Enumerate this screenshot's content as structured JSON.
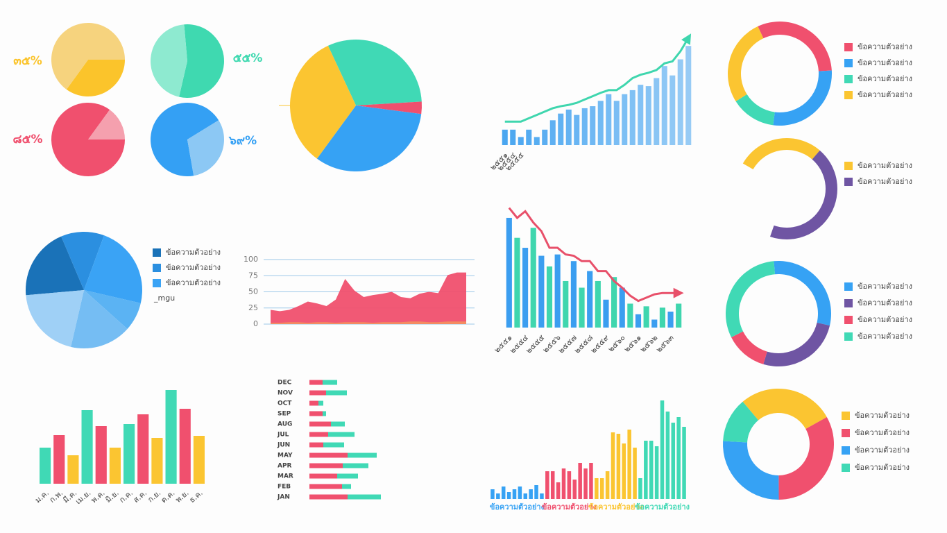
{
  "chart_data": [
    {
      "type": "pie",
      "values": [
        35,
        65
      ],
      "value_labels": [
        "๓๕%",
        null
      ],
      "colors": [
        "#fbc42b",
        "#f6d37e"
      ]
    },
    {
      "type": "pie",
      "values": [
        55,
        45
      ],
      "value_labels": [
        "๕๕%",
        null
      ],
      "colors": [
        "#3fd9b0",
        "#8eead0"
      ]
    },
    {
      "type": "pie",
      "values": [
        85,
        15
      ],
      "value_labels": [
        "๘๕%",
        null
      ],
      "colors": [
        "#f0506e",
        "#f5a0ae"
      ]
    },
    {
      "type": "pie",
      "values": [
        69,
        31
      ],
      "value_labels": [
        "๖๙%",
        null
      ],
      "colors": [
        "#34a0f4",
        "#8cc8f4"
      ]
    },
    {
      "type": "pie",
      "values": [
        31,
        3,
        33,
        33
      ],
      "colors": [
        "#40d9b5",
        "#f0506e",
        "#36a2f4",
        "#fbc531"
      ]
    },
    {
      "type": "combo",
      "categories": [
        "๒๕๕๑",
        "๒๕๕๔",
        "๒๕๕๕",
        null,
        null,
        null,
        null,
        null,
        null,
        null,
        null,
        null,
        null,
        null,
        null,
        null,
        null,
        null,
        null,
        null,
        null,
        null,
        null,
        null
      ],
      "series": [
        {
          "type": "bar",
          "color": "#4aa6f0",
          "values": [
            23,
            23,
            12,
            23,
            12,
            23,
            37,
            47,
            53,
            45,
            55,
            58,
            66,
            76,
            66,
            76,
            82,
            90,
            88,
            100,
            118,
            104,
            128,
            148
          ]
        },
        {
          "type": "line",
          "color": "#3fd6ae",
          "values": [
            35,
            35,
            35,
            40,
            45,
            50,
            55,
            58,
            60,
            63,
            68,
            73,
            78,
            82,
            82,
            90,
            100,
            105,
            108,
            112,
            122,
            125,
            140,
            160
          ]
        }
      ],
      "ylim": [
        0,
        170
      ]
    },
    {
      "type": "donut",
      "categories": [
        "ข้อความตัวอย่าง",
        "ข้อความตัวอย่าง",
        "ข้อความตัวอย่าง",
        "ข้อความตัวอย่าง"
      ],
      "values": [
        31,
        28,
        14,
        27
      ],
      "colors": [
        "#f0506e",
        "#36a2f4",
        "#40d9b5",
        "#fbc531"
      ]
    },
    {
      "type": "donut",
      "categories": [
        "ข้อความตัวอย่าง",
        "ข้อความตัวอย่าง"
      ],
      "values": [
        28,
        44
      ],
      "colors": [
        "#fbc531",
        "#6f55a3"
      ]
    },
    {
      "type": "pie",
      "categories": [
        "ข้อความตัวอย่าง",
        "ข้อความตัวอย่าง",
        "ข้อความตัวอย่าง",
        null,
        null,
        null
      ],
      "values": [
        20,
        12,
        23,
        8,
        17,
        20
      ],
      "colors": [
        "#1a72b8",
        "#2b8fe0",
        "#3aa3f5",
        "#5bb3f3",
        "#75bdf3",
        "#9fd0f6"
      ],
      "annotation": "_mgu"
    },
    {
      "type": "area",
      "series": [
        {
          "color": "#f0506e",
          "values": [
            22,
            20,
            22,
            28,
            35,
            32,
            28,
            38,
            70,
            52,
            42,
            45,
            47,
            50,
            42,
            40,
            47,
            50,
            48,
            76,
            80,
            80
          ]
        },
        {
          "color": "#f5a25a",
          "values": [
            2,
            2,
            3,
            3,
            2,
            3,
            3,
            2,
            3,
            3,
            3,
            2,
            3,
            3,
            3,
            4,
            4,
            3,
            3,
            4,
            4,
            4
          ]
        }
      ],
      "ylim": [
        0,
        100
      ],
      "yticks": [
        0,
        25,
        50,
        75,
        100
      ],
      "grid": true,
      "grid_color": "#9cc8e8"
    },
    {
      "type": "combo",
      "categories": [
        "๒๕๕๑",
        null,
        "๒๕๕๔",
        null,
        "๒๕๕๕",
        null,
        "๒๕๕๖",
        null,
        "๒๕๕๗",
        null,
        "๒๕๕๘",
        null,
        "๒๕๕๙",
        null,
        "๒๕๖๐",
        null,
        "๒๕๖๑",
        null,
        "๒๕๖๒",
        null,
        "๒๕๖๓",
        null
      ],
      "series": [
        {
          "type": "bar",
          "colors": [
            "#3b9ef0",
            "#3fd6ae"
          ],
          "values": [
            165,
            135,
            120,
            150,
            108,
            92,
            110,
            70,
            100,
            60,
            85,
            70,
            42,
            76,
            60,
            36,
            20,
            32,
            12,
            30,
            24,
            36
          ]
        },
        {
          "type": "line",
          "color": "#e8506a",
          "values": [
            180,
            165,
            175,
            158,
            145,
            120,
            120,
            110,
            108,
            100,
            100,
            85,
            85,
            70,
            60,
            48,
            40,
            45,
            50,
            52,
            52,
            52
          ]
        }
      ],
      "ylim": [
        0,
        190
      ]
    },
    {
      "type": "donut",
      "categories": [
        "ข้อความตัวอย่าง",
        "ข้อความตัวอย่าง",
        "ข้อความตัวอย่าง",
        "ข้อความตัวอย่าง"
      ],
      "values": [
        30,
        26,
        13,
        31
      ],
      "colors": [
        "#36a2f4",
        "#6f55a3",
        "#f0506e",
        "#40d9b5"
      ]
    },
    {
      "type": "bar",
      "categories": [
        "ม.ค.",
        "ก.พ.",
        "มี.ค.",
        "เม.ย.",
        "พ.ค.",
        "มิ.ย.",
        "ก.ค.",
        "ส.ค.",
        "ก.ย.",
        "ต.ค.",
        "พ.ย.",
        "ธ.ค."
      ],
      "values": [
        52,
        70,
        41,
        106,
        83,
        52,
        86,
        100,
        66,
        135,
        108,
        69
      ],
      "colors": [
        "#40d9b5",
        "#f0506e",
        "#fbc531",
        "#40d9b5",
        "#f0506e",
        "#fbc531",
        "#40d9b5",
        "#f0506e",
        "#fbc531",
        "#40d9b5",
        "#f0506e",
        "#fbc531"
      ],
      "ylim": [
        0,
        140
      ]
    },
    {
      "type": "hbar-stacked",
      "categories": [
        "DEC",
        "NOV",
        "OCT",
        "SEP",
        "AUG",
        "JUL",
        "JUN",
        "MAY",
        "APR",
        "MAR",
        "FEB",
        "JAN"
      ],
      "series": [
        {
          "color": "#f0506e",
          "values": [
            19,
            24,
            13,
            19,
            31,
            27,
            20,
            55,
            48,
            40,
            47,
            55
          ]
        },
        {
          "color": "#40d9b5",
          "values": [
            21,
            30,
            7,
            5,
            20,
            38,
            30,
            42,
            37,
            30,
            13,
            48
          ]
        }
      ],
      "xlim": [
        0,
        110
      ]
    },
    {
      "type": "bar-groups",
      "series": [
        {
          "name": "ข้อความตัวอย่าง",
          "color": "#36a2f4",
          "values": [
            14,
            8,
            18,
            10,
            14,
            18,
            8,
            14,
            20,
            8
          ]
        },
        {
          "name": "ข้อความตัวอย่าง",
          "color": "#f0506e",
          "values": [
            40,
            40,
            24,
            44,
            40,
            28,
            52,
            44,
            52
          ]
        },
        {
          "name": "ข้อความตัวอย่าง",
          "color": "#fbc531",
          "values": [
            30,
            30,
            40,
            96,
            94,
            80,
            100,
            74
          ]
        },
        {
          "name": "ข้อความตัวอย่าง",
          "color": "#40d9b5",
          "values": [
            30,
            84,
            84,
            76,
            142,
            126,
            110,
            118,
            104
          ]
        }
      ],
      "ylim": [
        0,
        150
      ]
    },
    {
      "type": "donut",
      "categories": [
        "ข้อความตัวอย่าง",
        "ข้อความตัวอย่าง",
        "ข้อความตัวอย่าง",
        "ข้อความตัวอย่าง"
      ],
      "values": [
        28,
        33,
        26,
        13
      ],
      "colors": [
        "#fbc531",
        "#f0506e",
        "#36a2f4",
        "#40d9b5"
      ]
    }
  ]
}
